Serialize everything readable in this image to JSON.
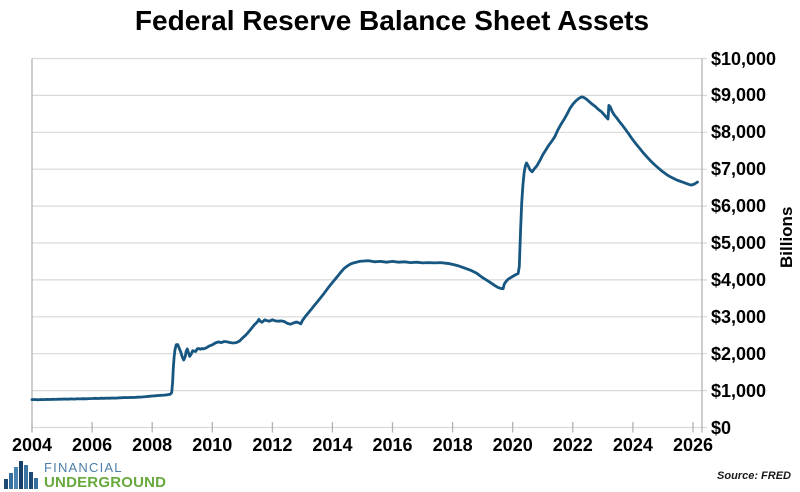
{
  "title": "Federal Reserve Balance Sheet Assets",
  "source_note": "Source: FRED",
  "logo": {
    "line1": "FINANCIAL",
    "line2": "UNDERGROUND",
    "line1_color": "#4d7ea8",
    "line2_color": "#67a93d",
    "icon_bar_heights": [
      10,
      16,
      22,
      28,
      24,
      17,
      11
    ],
    "icon_bar_colors": [
      "#1d4976",
      "#356f9e",
      "#4a85b2",
      "#163f68",
      "#3a74a3",
      "#1d4976",
      "#356f9e"
    ]
  },
  "chart_data": {
    "type": "line",
    "title": "Federal Reserve Balance Sheet Assets",
    "xlabel": "",
    "ylabel": "Billions",
    "xlim": [
      2004,
      2026.3
    ],
    "ylim": [
      0,
      10000
    ],
    "grid": "horizontal-only",
    "legend": "none",
    "line_color": "#165680",
    "grid_color": "#d9d9d9",
    "axis_color": "#b3b3b3",
    "x_ticks": [
      2004,
      2006,
      2008,
      2010,
      2012,
      2014,
      2016,
      2018,
      2020,
      2022,
      2024,
      2026
    ],
    "x_tick_labels": [
      "2004",
      "2006",
      "2008",
      "2010",
      "2012",
      "2014",
      "2016",
      "2018",
      "2020",
      "2022",
      "2024",
      "2026"
    ],
    "y_ticks": [
      0,
      1000,
      2000,
      3000,
      4000,
      5000,
      6000,
      7000,
      8000,
      9000,
      10000
    ],
    "y_tick_labels": [
      "$0",
      "$1,000",
      "$2,000",
      "$3,000",
      "$4,000",
      "$5,000",
      "$6,000",
      "$7,000",
      "$8,000",
      "$9,000",
      "$10,000"
    ],
    "series": [
      {
        "points": [
          [
            2004.0,
            755
          ],
          [
            2004.1,
            758
          ],
          [
            2004.2,
            752
          ],
          [
            2004.3,
            760
          ],
          [
            2004.4,
            757
          ],
          [
            2004.5,
            762
          ],
          [
            2004.6,
            759
          ],
          [
            2004.7,
            764
          ],
          [
            2004.8,
            761
          ],
          [
            2004.9,
            766
          ],
          [
            2005.0,
            768
          ],
          [
            2005.1,
            772
          ],
          [
            2005.2,
            768
          ],
          [
            2005.3,
            775
          ],
          [
            2005.4,
            771
          ],
          [
            2005.5,
            778
          ],
          [
            2005.6,
            774
          ],
          [
            2005.7,
            780
          ],
          [
            2005.8,
            777
          ],
          [
            2005.9,
            783
          ],
          [
            2006.0,
            786
          ],
          [
            2006.1,
            790
          ],
          [
            2006.2,
            787
          ],
          [
            2006.3,
            793
          ],
          [
            2006.4,
            790
          ],
          [
            2006.5,
            797
          ],
          [
            2006.6,
            793
          ],
          [
            2006.7,
            800
          ],
          [
            2006.8,
            797
          ],
          [
            2006.9,
            804
          ],
          [
            2007.0,
            808
          ],
          [
            2007.1,
            812
          ],
          [
            2007.2,
            809
          ],
          [
            2007.3,
            816
          ],
          [
            2007.4,
            813
          ],
          [
            2007.5,
            820
          ],
          [
            2007.6,
            824
          ],
          [
            2007.7,
            830
          ],
          [
            2007.8,
            838
          ],
          [
            2007.9,
            845
          ],
          [
            2008.0,
            855
          ],
          [
            2008.1,
            860
          ],
          [
            2008.2,
            866
          ],
          [
            2008.3,
            872
          ],
          [
            2008.4,
            878
          ],
          [
            2008.5,
            885
          ],
          [
            2008.6,
            900
          ],
          [
            2008.65,
            945
          ],
          [
            2008.68,
            1220
          ],
          [
            2008.7,
            1560
          ],
          [
            2008.73,
            1900
          ],
          [
            2008.76,
            2110
          ],
          [
            2008.8,
            2240
          ],
          [
            2008.85,
            2250
          ],
          [
            2008.9,
            2150
          ],
          [
            2008.95,
            2050
          ],
          [
            2009.0,
            1920
          ],
          [
            2009.05,
            1830
          ],
          [
            2009.1,
            1920
          ],
          [
            2009.13,
            2060
          ],
          [
            2009.17,
            2130
          ],
          [
            2009.2,
            2050
          ],
          [
            2009.25,
            1930
          ],
          [
            2009.3,
            1990
          ],
          [
            2009.35,
            2080
          ],
          [
            2009.4,
            2070
          ],
          [
            2009.45,
            2060
          ],
          [
            2009.5,
            2130
          ],
          [
            2009.55,
            2140
          ],
          [
            2009.6,
            2120
          ],
          [
            2009.65,
            2140
          ],
          [
            2009.7,
            2130
          ],
          [
            2009.8,
            2160
          ],
          [
            2009.9,
            2210
          ],
          [
            2010.0,
            2240
          ],
          [
            2010.1,
            2290
          ],
          [
            2010.2,
            2320
          ],
          [
            2010.3,
            2300
          ],
          [
            2010.4,
            2330
          ],
          [
            2010.5,
            2320
          ],
          [
            2010.6,
            2300
          ],
          [
            2010.7,
            2290
          ],
          [
            2010.8,
            2300
          ],
          [
            2010.9,
            2340
          ],
          [
            2011.0,
            2420
          ],
          [
            2011.1,
            2490
          ],
          [
            2011.2,
            2580
          ],
          [
            2011.3,
            2680
          ],
          [
            2011.4,
            2780
          ],
          [
            2011.5,
            2860
          ],
          [
            2011.55,
            2930
          ],
          [
            2011.6,
            2880
          ],
          [
            2011.65,
            2850
          ],
          [
            2011.7,
            2880
          ],
          [
            2011.75,
            2920
          ],
          [
            2011.8,
            2900
          ],
          [
            2011.9,
            2880
          ],
          [
            2012.0,
            2920
          ],
          [
            2012.1,
            2890
          ],
          [
            2012.2,
            2880
          ],
          [
            2012.3,
            2890
          ],
          [
            2012.4,
            2870
          ],
          [
            2012.5,
            2820
          ],
          [
            2012.6,
            2800
          ],
          [
            2012.7,
            2830
          ],
          [
            2012.8,
            2860
          ],
          [
            2012.9,
            2830
          ],
          [
            2012.95,
            2810
          ],
          [
            2013.0,
            2900
          ],
          [
            2013.1,
            3010
          ],
          [
            2013.2,
            3110
          ],
          [
            2013.3,
            3210
          ],
          [
            2013.4,
            3310
          ],
          [
            2013.5,
            3410
          ],
          [
            2013.6,
            3510
          ],
          [
            2013.7,
            3610
          ],
          [
            2013.8,
            3720
          ],
          [
            2013.9,
            3830
          ],
          [
            2014.0,
            3930
          ],
          [
            2014.1,
            4030
          ],
          [
            2014.2,
            4130
          ],
          [
            2014.3,
            4230
          ],
          [
            2014.4,
            4320
          ],
          [
            2014.5,
            4380
          ],
          [
            2014.6,
            4430
          ],
          [
            2014.7,
            4460
          ],
          [
            2014.8,
            4480
          ],
          [
            2014.9,
            4500
          ],
          [
            2015.0,
            4510
          ],
          [
            2015.2,
            4520
          ],
          [
            2015.4,
            4490
          ],
          [
            2015.6,
            4500
          ],
          [
            2015.8,
            4480
          ],
          [
            2016.0,
            4500
          ],
          [
            2016.2,
            4480
          ],
          [
            2016.4,
            4490
          ],
          [
            2016.6,
            4470
          ],
          [
            2016.8,
            4480
          ],
          [
            2017.0,
            4460
          ],
          [
            2017.2,
            4470
          ],
          [
            2017.4,
            4460
          ],
          [
            2017.6,
            4470
          ],
          [
            2017.8,
            4450
          ],
          [
            2017.9,
            4440
          ],
          [
            2018.0,
            4420
          ],
          [
            2018.2,
            4380
          ],
          [
            2018.4,
            4320
          ],
          [
            2018.6,
            4260
          ],
          [
            2018.8,
            4180
          ],
          [
            2019.0,
            4060
          ],
          [
            2019.2,
            3960
          ],
          [
            2019.4,
            3850
          ],
          [
            2019.5,
            3800
          ],
          [
            2019.6,
            3770
          ],
          [
            2019.68,
            3760
          ],
          [
            2019.72,
            3890
          ],
          [
            2019.78,
            3960
          ],
          [
            2019.85,
            4020
          ],
          [
            2019.95,
            4070
          ],
          [
            2020.05,
            4120
          ],
          [
            2020.12,
            4150
          ],
          [
            2020.18,
            4170
          ],
          [
            2020.22,
            4360
          ],
          [
            2020.26,
            5300
          ],
          [
            2020.3,
            6080
          ],
          [
            2020.34,
            6560
          ],
          [
            2020.38,
            6900
          ],
          [
            2020.42,
            7080
          ],
          [
            2020.46,
            7170
          ],
          [
            2020.52,
            7080
          ],
          [
            2020.58,
            6980
          ],
          [
            2020.65,
            6930
          ],
          [
            2020.72,
            7010
          ],
          [
            2020.8,
            7090
          ],
          [
            2020.9,
            7230
          ],
          [
            2021.0,
            7390
          ],
          [
            2021.1,
            7520
          ],
          [
            2021.2,
            7650
          ],
          [
            2021.3,
            7760
          ],
          [
            2021.4,
            7880
          ],
          [
            2021.5,
            8060
          ],
          [
            2021.6,
            8210
          ],
          [
            2021.7,
            8340
          ],
          [
            2021.8,
            8480
          ],
          [
            2021.9,
            8640
          ],
          [
            2022.0,
            8760
          ],
          [
            2022.1,
            8850
          ],
          [
            2022.2,
            8920
          ],
          [
            2022.3,
            8960
          ],
          [
            2022.35,
            8950
          ],
          [
            2022.45,
            8900
          ],
          [
            2022.55,
            8830
          ],
          [
            2022.65,
            8760
          ],
          [
            2022.75,
            8700
          ],
          [
            2022.85,
            8620
          ],
          [
            2022.95,
            8560
          ],
          [
            2023.05,
            8470
          ],
          [
            2023.12,
            8400
          ],
          [
            2023.17,
            8360
          ],
          [
            2023.2,
            8730
          ],
          [
            2023.25,
            8680
          ],
          [
            2023.3,
            8580
          ],
          [
            2023.37,
            8480
          ],
          [
            2023.45,
            8400
          ],
          [
            2023.55,
            8290
          ],
          [
            2023.65,
            8190
          ],
          [
            2023.75,
            8080
          ],
          [
            2023.85,
            7970
          ],
          [
            2023.95,
            7850
          ],
          [
            2024.05,
            7740
          ],
          [
            2024.15,
            7640
          ],
          [
            2024.25,
            7540
          ],
          [
            2024.35,
            7440
          ],
          [
            2024.45,
            7350
          ],
          [
            2024.55,
            7260
          ],
          [
            2024.65,
            7180
          ],
          [
            2024.75,
            7100
          ],
          [
            2024.85,
            7030
          ],
          [
            2024.95,
            6960
          ],
          [
            2025.05,
            6900
          ],
          [
            2025.15,
            6840
          ],
          [
            2025.25,
            6790
          ],
          [
            2025.35,
            6750
          ],
          [
            2025.45,
            6710
          ],
          [
            2025.55,
            6680
          ],
          [
            2025.65,
            6650
          ],
          [
            2025.75,
            6620
          ],
          [
            2025.85,
            6590
          ],
          [
            2025.95,
            6570
          ],
          [
            2026.05,
            6600
          ],
          [
            2026.15,
            6650
          ]
        ]
      }
    ]
  }
}
